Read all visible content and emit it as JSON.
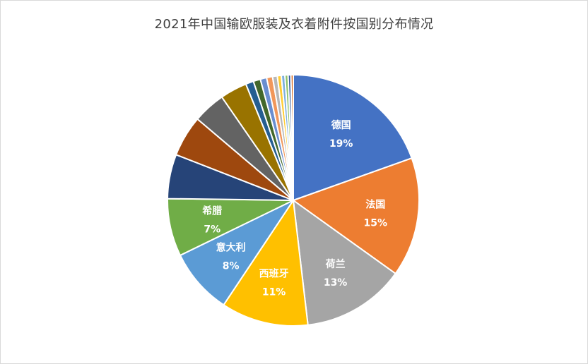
{
  "chart_data": {
    "type": "pie",
    "title": "2021年中国输欧服装及衣着附件按国别分布情况",
    "legend": "none",
    "slices": [
      {
        "name": "德国",
        "value": 19.2,
        "label": "19%",
        "color": "#4472c4",
        "show_label": true
      },
      {
        "name": "法国",
        "value": 15.1,
        "label": "15%",
        "color": "#ed7d31",
        "show_label": true
      },
      {
        "name": "荷兰",
        "value": 13.0,
        "label": "13%",
        "color": "#a5a5a5",
        "show_label": true
      },
      {
        "name": "西班牙",
        "value": 11.0,
        "label": "11%",
        "color": "#ffc000",
        "show_label": true
      },
      {
        "name": "意大利",
        "value": 8.3,
        "label": "8%",
        "color": "#5b9bd5",
        "show_label": true
      },
      {
        "name": "希腊",
        "value": 7.3,
        "label": "7%",
        "color": "#70ad47",
        "show_label": true
      },
      {
        "value": 5.6,
        "color": "#264478",
        "show_label": false
      },
      {
        "value": 5.2,
        "color": "#9e480e",
        "show_label": false
      },
      {
        "value": 4.1,
        "color": "#636363",
        "show_label": false
      },
      {
        "value": 3.4,
        "color": "#997300",
        "show_label": false
      },
      {
        "value": 1.0,
        "color": "#255e91",
        "show_label": false
      },
      {
        "value": 0.9,
        "color": "#43682b",
        "show_label": false
      },
      {
        "value": 0.8,
        "color": "#698ed0",
        "show_label": false
      },
      {
        "value": 0.75,
        "color": "#f1975a",
        "show_label": false
      },
      {
        "value": 0.6,
        "color": "#b7b7b7",
        "show_label": false
      },
      {
        "value": 0.5,
        "color": "#ffcd33",
        "show_label": false
      },
      {
        "value": 0.45,
        "color": "#7cafdd",
        "show_label": false
      },
      {
        "value": 0.4,
        "color": "#8cc168",
        "show_label": false
      },
      {
        "value": 0.35,
        "color": "#335aa1",
        "show_label": false
      },
      {
        "value": 0.3,
        "color": "#d26012",
        "show_label": false
      }
    ]
  }
}
